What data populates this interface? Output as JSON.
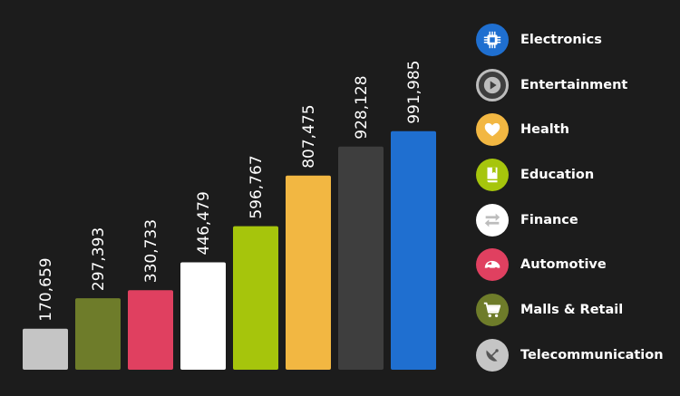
{
  "chart_data": {
    "type": "bar",
    "categories": [
      "Electronics",
      "Entertainment",
      "Health",
      "Education",
      "Finance",
      "Automotive",
      "Malls & Retail",
      "Telecommunication"
    ],
    "values": [
      170659,
      297393,
      330733,
      446479,
      596767,
      807475,
      928128,
      991985
    ],
    "value_labels": [
      "170,659",
      "297,393",
      "330,733",
      "446,479",
      "596,767",
      "807,475",
      "928,128",
      "991,985"
    ],
    "bar_order": [
      "Telecommunication",
      "Malls & Retail",
      "Automotive",
      "Finance",
      "Education",
      "Health",
      "Entertainment",
      "Electronics"
    ],
    "ylim": [
      0,
      1000000
    ],
    "grid": false,
    "legend_position": "right"
  },
  "legend": {
    "items": [
      {
        "label": "Electronics",
        "color": "#1f6fd0",
        "icon": "chip-icon"
      },
      {
        "label": "Entertainment",
        "color": "#3e3e3e",
        "icon": "play-icon"
      },
      {
        "label": "Health",
        "color": "#f2b742",
        "icon": "heart-icon"
      },
      {
        "label": "Education",
        "color": "#a6c50c",
        "icon": "book-icon"
      },
      {
        "label": "Finance",
        "color": "#ffffff",
        "icon": "exchange-icon"
      },
      {
        "label": "Automotive",
        "color": "#e04060",
        "icon": "car-icon"
      },
      {
        "label": "Malls & Retail",
        "color": "#6e7c2a",
        "icon": "cart-icon"
      },
      {
        "label": "Telecommunication",
        "color": "#c5c5c5",
        "icon": "satellite-dish-icon"
      }
    ]
  }
}
